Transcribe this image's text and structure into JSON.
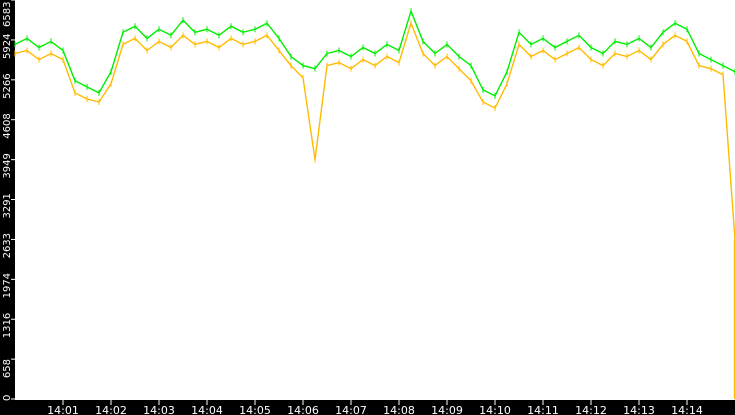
{
  "chart_data": {
    "type": "line",
    "title": "",
    "xlabel": "",
    "ylabel": "",
    "ylim": [
      0,
      6583
    ],
    "xlim": [
      "14:00:00",
      "14:15:00"
    ],
    "grid": false,
    "y_ticks": [
      "0",
      "658",
      "1316",
      "1974",
      "2633",
      "3291",
      "3949",
      "4608",
      "5266",
      "5924",
      "6583"
    ],
    "x_ticks": [
      "14:01",
      "14:02",
      "14:03",
      "14:04",
      "14:05",
      "14:06",
      "14:07",
      "14:08",
      "14:09",
      "14:10",
      "14:11",
      "14:12",
      "14:13",
      "14:14"
    ],
    "colors": {
      "background": "#ffffff",
      "axis_band": "#000000",
      "series_upper": "#00ee00",
      "series_lower": "#ffbb00"
    },
    "x_step_seconds": 15,
    "series": [
      {
        "color": "#00ee00",
        "values": [
          5850,
          5950,
          5800,
          5900,
          5750,
          5250,
          5150,
          5050,
          5400,
          6050,
          6150,
          5950,
          6100,
          6000,
          6250,
          6050,
          6100,
          6000,
          6150,
          6050,
          6100,
          6200,
          5950,
          5650,
          5500,
          5450,
          5700,
          5750,
          5650,
          5800,
          5700,
          5850,
          5750,
          6400,
          5900,
          5700,
          5850,
          5650,
          5500,
          5100,
          5000,
          5400,
          6050,
          5850,
          5950,
          5800,
          5900,
          6000,
          5800,
          5700,
          5900,
          5850,
          5950,
          5800,
          6050,
          6200,
          6100,
          5700,
          5600,
          5500,
          5400
        ]
      },
      {
        "color": "#ffbb00",
        "values": [
          5700,
          5750,
          5600,
          5700,
          5600,
          5050,
          4950,
          4900,
          5200,
          5850,
          5950,
          5750,
          5900,
          5800,
          6000,
          5850,
          5900,
          5800,
          5950,
          5850,
          5900,
          6000,
          5750,
          5500,
          5300,
          3950,
          5500,
          5550,
          5450,
          5600,
          5500,
          5650,
          5550,
          6200,
          5700,
          5500,
          5650,
          5450,
          5250,
          4900,
          4800,
          5200,
          5850,
          5650,
          5750,
          5600,
          5700,
          5800,
          5600,
          5500,
          5700,
          5650,
          5750,
          5600,
          5850,
          6000,
          5900,
          5500,
          5450,
          5350,
          2633
        ]
      }
    ]
  }
}
